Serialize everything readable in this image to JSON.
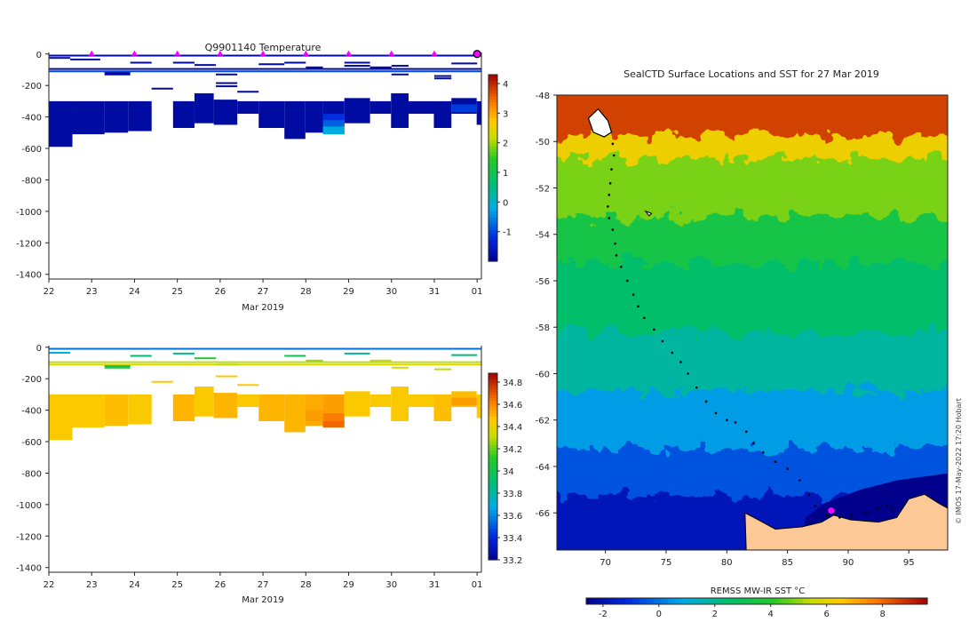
{
  "chart_data": [
    {
      "type": "heatmap",
      "name": "temperature-section",
      "title": "Q9901140  Temperature",
      "xlabel": "Mar 2019",
      "ylabel": "",
      "x_ticks": [
        "22",
        "23",
        "24",
        "25",
        "26",
        "27",
        "28",
        "29",
        "30",
        "31",
        "01"
      ],
      "x_tick_values": [
        22,
        23,
        24,
        25,
        26,
        27,
        28,
        29,
        30,
        31,
        32
      ],
      "xlim": [
        22,
        32.1
      ],
      "ylim": [
        -1430,
        10
      ],
      "y_ticks": [
        0,
        -200,
        -400,
        -600,
        -800,
        -1000,
        -1200,
        -1400
      ],
      "profile_markers": [
        23,
        24,
        25,
        26,
        27,
        28,
        29,
        30,
        31,
        32
      ],
      "colorbar": {
        "min": -2,
        "max": 4.3,
        "ticks": [
          4,
          3,
          2,
          1,
          0,
          -1
        ]
      },
      "columns": [
        {
          "x0": 22,
          "x1": 22.55,
          "top": -300,
          "bottom": -590,
          "value": -1.8
        },
        {
          "x0": 22.55,
          "x1": 23.3,
          "top": -300,
          "bottom": -510,
          "value": -1.8
        },
        {
          "x0": 23.3,
          "x1": 23.85,
          "top": -300,
          "bottom": -500,
          "value": -1.8
        },
        {
          "x0": 23.85,
          "x1": 24.4,
          "top": -300,
          "bottom": -490,
          "value": -1.8
        },
        {
          "x0": 24.9,
          "x1": 25.4,
          "top": -300,
          "bottom": -470,
          "value": -1.8
        },
        {
          "x0": 25.4,
          "x1": 25.85,
          "top": -250,
          "bottom": -440,
          "value": -1.8
        },
        {
          "x0": 25.85,
          "x1": 26.4,
          "top": -290,
          "bottom": -450,
          "value": -1.8
        },
        {
          "x0": 26.4,
          "x1": 26.9,
          "top": -300,
          "bottom": -380,
          "value": -1.8
        },
        {
          "x0": 26.9,
          "x1": 27.5,
          "top": -300,
          "bottom": -470,
          "value": -1.8
        },
        {
          "x0": 27.5,
          "x1": 27.99,
          "top": -300,
          "bottom": -540,
          "value": -1.8
        },
        {
          "x0": 27.99,
          "x1": 28.4,
          "top": -300,
          "bottom": -500,
          "value": -1.8
        },
        {
          "x0": 28.4,
          "x1": 28.9,
          "top": -300,
          "bottom": -510,
          "value": -1.8
        },
        {
          "x0": 28.9,
          "x1": 29.5,
          "top": -280,
          "bottom": -440,
          "value": -1.8
        },
        {
          "x0": 29.5,
          "x1": 29.99,
          "top": -300,
          "bottom": -380,
          "value": -1.8
        },
        {
          "x0": 29.99,
          "x1": 30.4,
          "top": -250,
          "bottom": -470,
          "value": -1.8
        },
        {
          "x0": 30.4,
          "x1": 30.99,
          "top": -300,
          "bottom": -380,
          "value": -1.8
        },
        {
          "x0": 30.99,
          "x1": 31.4,
          "top": -300,
          "bottom": -470,
          "value": -1.8
        },
        {
          "x0": 31.4,
          "x1": 31.99,
          "top": -280,
          "bottom": -380,
          "value": -1.8
        },
        {
          "x0": 31.99,
          "x1": 32.1,
          "top": -300,
          "bottom": -450,
          "value": -1.8
        }
      ],
      "patches": [
        {
          "x0": 28.4,
          "x1": 28.9,
          "top": -380,
          "bottom": -420,
          "value": -1.2
        },
        {
          "x0": 28.4,
          "x1": 28.9,
          "top": -420,
          "bottom": -460,
          "value": -0.8
        },
        {
          "x0": 28.4,
          "x1": 28.9,
          "top": -460,
          "bottom": -510,
          "value": -0.2
        },
        {
          "x0": 31.4,
          "x1": 31.99,
          "top": -320,
          "bottom": -370,
          "value": -1.1
        }
      ],
      "near_surface_lines": [
        {
          "x0": 22,
          "x1": 32.1,
          "depth": -10,
          "value": -1.8
        },
        {
          "x0": 22,
          "x1": 32.1,
          "depth": -95,
          "value": -1.8
        },
        {
          "x0": 22,
          "x1": 32.1,
          "depth": -110,
          "value": -1.0
        },
        {
          "x0": 22,
          "x1": 22.5,
          "depth": -25,
          "value": -1.8
        },
        {
          "x0": 22.5,
          "x1": 23.2,
          "depth": -35,
          "value": -1.8
        },
        {
          "x0": 23.3,
          "x1": 23.9,
          "depth": -120,
          "value": -1.8
        },
        {
          "x0": 23.3,
          "x1": 23.9,
          "depth": -130,
          "value": -1.8
        },
        {
          "x0": 23.9,
          "x1": 24.4,
          "depth": -55,
          "value": -1.8
        },
        {
          "x0": 24.4,
          "x1": 24.9,
          "depth": -220,
          "value": -1.8
        },
        {
          "x0": 24.9,
          "x1": 25.4,
          "depth": -55,
          "value": -1.8
        },
        {
          "x0": 25.4,
          "x1": 25.9,
          "depth": -70,
          "value": -1.8
        },
        {
          "x0": 25.9,
          "x1": 26.4,
          "depth": -130,
          "value": -1.8
        },
        {
          "x0": 25.9,
          "x1": 26.4,
          "depth": -185,
          "value": -1.8
        },
        {
          "x0": 25.9,
          "x1": 26.4,
          "depth": -205,
          "value": -1.8
        },
        {
          "x0": 26.4,
          "x1": 26.9,
          "depth": -240,
          "value": -1.8
        },
        {
          "x0": 26.9,
          "x1": 27.5,
          "depth": -65,
          "value": -1.8
        },
        {
          "x0": 27.5,
          "x1": 28.0,
          "depth": -55,
          "value": -1.8
        },
        {
          "x0": 28.0,
          "x1": 28.4,
          "depth": -85,
          "value": -1.8
        },
        {
          "x0": 28.9,
          "x1": 29.5,
          "depth": -55,
          "value": -1.8
        },
        {
          "x0": 28.9,
          "x1": 29.5,
          "depth": -75,
          "value": -1.8
        },
        {
          "x0": 29.5,
          "x1": 30.0,
          "depth": -85,
          "value": -1.8
        },
        {
          "x0": 30.0,
          "x1": 30.4,
          "depth": -75,
          "value": -1.8
        },
        {
          "x0": 30.0,
          "x1": 30.4,
          "depth": -130,
          "value": -1.8
        },
        {
          "x0": 31.0,
          "x1": 31.4,
          "depth": -140,
          "value": -1.8
        },
        {
          "x0": 31.0,
          "x1": 31.4,
          "depth": -155,
          "value": -1.8
        },
        {
          "x0": 31.4,
          "x1": 32.0,
          "depth": -60,
          "value": -1.8
        }
      ]
    },
    {
      "type": "heatmap",
      "name": "salinity-section",
      "title": "",
      "xlabel": "Mar 2019",
      "ylabel": "",
      "x_ticks": [
        "22",
        "23",
        "24",
        "25",
        "26",
        "27",
        "28",
        "29",
        "30",
        "31",
        "01"
      ],
      "x_tick_values": [
        22,
        23,
        24,
        25,
        26,
        27,
        28,
        29,
        30,
        31,
        32
      ],
      "xlim": [
        22,
        32.1
      ],
      "ylim": [
        -1430,
        10
      ],
      "y_ticks": [
        0,
        -200,
        -400,
        -600,
        -800,
        -1000,
        -1200,
        -1400
      ],
      "colorbar": {
        "min": 33.2,
        "max": 34.88,
        "ticks": [
          34.8,
          34.6,
          34.4,
          34.2,
          34,
          33.8,
          33.6,
          33.4,
          33.2
        ]
      },
      "columns": [
        {
          "x0": 22,
          "x1": 22.55,
          "top": -300,
          "bottom": -590,
          "value": 34.45
        },
        {
          "x0": 22.55,
          "x1": 23.3,
          "top": -300,
          "bottom": -510,
          "value": 34.45
        },
        {
          "x0": 23.3,
          "x1": 23.85,
          "top": -300,
          "bottom": -500,
          "value": 34.48
        },
        {
          "x0": 23.85,
          "x1": 24.4,
          "top": -300,
          "bottom": -490,
          "value": 34.45
        },
        {
          "x0": 24.9,
          "x1": 25.4,
          "top": -300,
          "bottom": -470,
          "value": 34.5
        },
        {
          "x0": 25.4,
          "x1": 25.85,
          "top": -250,
          "bottom": -440,
          "value": 34.45
        },
        {
          "x0": 25.85,
          "x1": 26.4,
          "top": -290,
          "bottom": -450,
          "value": 34.5
        },
        {
          "x0": 26.4,
          "x1": 26.9,
          "top": -300,
          "bottom": -380,
          "value": 34.45
        },
        {
          "x0": 26.9,
          "x1": 27.5,
          "top": -300,
          "bottom": -470,
          "value": 34.5
        },
        {
          "x0": 27.5,
          "x1": 27.99,
          "top": -300,
          "bottom": -540,
          "value": 34.5
        },
        {
          "x0": 27.99,
          "x1": 28.4,
          "top": -300,
          "bottom": -500,
          "value": 34.52
        },
        {
          "x0": 28.4,
          "x1": 28.9,
          "top": -300,
          "bottom": -510,
          "value": 34.55
        },
        {
          "x0": 28.9,
          "x1": 29.5,
          "top": -280,
          "bottom": -440,
          "value": 34.45
        },
        {
          "x0": 29.5,
          "x1": 29.99,
          "top": -300,
          "bottom": -380,
          "value": 34.45
        },
        {
          "x0": 29.99,
          "x1": 30.4,
          "top": -250,
          "bottom": -470,
          "value": 34.45
        },
        {
          "x0": 30.4,
          "x1": 30.99,
          "top": -300,
          "bottom": -380,
          "value": 34.45
        },
        {
          "x0": 30.99,
          "x1": 31.4,
          "top": -300,
          "bottom": -470,
          "value": 34.48
        },
        {
          "x0": 31.4,
          "x1": 31.99,
          "top": -280,
          "bottom": -380,
          "value": 34.48
        },
        {
          "x0": 31.99,
          "x1": 32.1,
          "top": -300,
          "bottom": -450,
          "value": 34.45
        }
      ],
      "patches": [
        {
          "x0": 28.4,
          "x1": 28.9,
          "top": -420,
          "bottom": -470,
          "value": 34.62
        },
        {
          "x0": 28.4,
          "x1": 28.9,
          "top": -470,
          "bottom": -510,
          "value": 34.66
        },
        {
          "x0": 27.99,
          "x1": 28.4,
          "top": -400,
          "bottom": -470,
          "value": 34.55
        },
        {
          "x0": 31.4,
          "x1": 31.99,
          "top": -320,
          "bottom": -370,
          "value": 34.55
        }
      ],
      "near_surface_lines": [
        {
          "x0": 22,
          "x1": 32.1,
          "depth": -10,
          "value": 33.55
        },
        {
          "x0": 22,
          "x1": 32.1,
          "depth": -95,
          "value": 34.3
        },
        {
          "x0": 22,
          "x1": 32.1,
          "depth": -110,
          "value": 34.35
        },
        {
          "x0": 22,
          "x1": 22.5,
          "depth": -35,
          "value": 33.7
        },
        {
          "x0": 23.3,
          "x1": 23.9,
          "depth": -120,
          "value": 34.0
        },
        {
          "x0": 23.3,
          "x1": 23.9,
          "depth": -130,
          "value": 34.1
        },
        {
          "x0": 23.9,
          "x1": 24.4,
          "depth": -55,
          "value": 33.9
        },
        {
          "x0": 24.4,
          "x1": 24.9,
          "depth": -220,
          "value": 34.45
        },
        {
          "x0": 24.9,
          "x1": 25.4,
          "depth": -40,
          "value": 33.85
        },
        {
          "x0": 25.4,
          "x1": 25.9,
          "depth": -70,
          "value": 34.1
        },
        {
          "x0": 25.9,
          "x1": 26.4,
          "depth": -110,
          "value": 34.3
        },
        {
          "x0": 25.9,
          "x1": 26.4,
          "depth": -185,
          "value": 34.45
        },
        {
          "x0": 26.4,
          "x1": 26.9,
          "depth": -240,
          "value": 34.45
        },
        {
          "x0": 27.5,
          "x1": 28.0,
          "depth": -55,
          "value": 34.0
        },
        {
          "x0": 28.0,
          "x1": 28.4,
          "depth": -85,
          "value": 34.25
        },
        {
          "x0": 28.9,
          "x1": 29.5,
          "depth": -40,
          "value": 33.8
        },
        {
          "x0": 29.5,
          "x1": 30.0,
          "depth": -85,
          "value": 34.3
        },
        {
          "x0": 30.0,
          "x1": 30.4,
          "depth": -130,
          "value": 34.35
        },
        {
          "x0": 31.0,
          "x1": 31.4,
          "depth": -140,
          "value": 34.3
        },
        {
          "x0": 31.4,
          "x1": 32.0,
          "depth": -50,
          "value": 33.9
        }
      ]
    },
    {
      "type": "heatmap",
      "name": "sst-map",
      "title": "SealCTD Surface Locations and SST for 27 Mar 2019",
      "xlabel": "",
      "ylabel": "",
      "xlim": [
        66,
        98.2
      ],
      "ylim": [
        -67.6,
        -48
      ],
      "x_ticks": [
        70,
        75,
        80,
        85,
        90,
        95
      ],
      "y_ticks": [
        -48,
        -50,
        -52,
        -54,
        -56,
        -58,
        -60,
        -62,
        -64,
        -66
      ],
      "colorbar": {
        "label": "REMSS MW-IR SST °C",
        "min": -2.6,
        "max": 9.6,
        "ticks": [
          -2,
          0,
          2,
          4,
          6,
          8
        ]
      },
      "sst_zones": [
        {
          "lat_top": -48,
          "lat_bottom": -50.5,
          "value": 8.6
        },
        {
          "lat_top": -50.5,
          "lat_bottom": -51.5,
          "value": 6.2
        },
        {
          "lat_top": -51.5,
          "lat_bottom": -54,
          "value": 4.8
        },
        {
          "lat_top": -54,
          "lat_bottom": -56,
          "value": 3.4
        },
        {
          "lat_top": -56,
          "lat_bottom": -59,
          "value": 2.6
        },
        {
          "lat_top": -59,
          "lat_bottom": -61.5,
          "value": 1.8
        },
        {
          "lat_top": -61.5,
          "lat_bottom": -64,
          "value": 0.6
        },
        {
          "lat_top": -64,
          "lat_bottom": -66,
          "value": -0.5
        },
        {
          "lat_top": -66,
          "lat_bottom": -67.6,
          "value": -1.8
        }
      ],
      "track": [
        [
          70.6,
          -50.1
        ],
        [
          70.7,
          -50.6
        ],
        [
          70.5,
          -51.2
        ],
        [
          70.4,
          -51.8
        ],
        [
          70.3,
          -52.3
        ],
        [
          70.2,
          -52.8
        ],
        [
          70.3,
          -53.3
        ],
        [
          70.6,
          -53.8
        ],
        [
          70.8,
          -54.4
        ],
        [
          70.9,
          -54.9
        ],
        [
          71.3,
          -55.4
        ],
        [
          71.8,
          -56.0
        ],
        [
          72.3,
          -56.6
        ],
        [
          72.7,
          -57.1
        ],
        [
          73.2,
          -57.6
        ],
        [
          74.0,
          -58.1
        ],
        [
          74.7,
          -58.6
        ],
        [
          75.5,
          -59.1
        ],
        [
          76.2,
          -59.5
        ],
        [
          76.8,
          -60.0
        ],
        [
          77.5,
          -60.6
        ],
        [
          78.3,
          -61.2
        ],
        [
          79.1,
          -61.7
        ],
        [
          80.0,
          -62.0
        ],
        [
          80.7,
          -62.1
        ],
        [
          81.6,
          -62.5
        ],
        [
          82.2,
          -63.0
        ],
        [
          83.0,
          -63.4
        ],
        [
          84.0,
          -63.8
        ],
        [
          85.0,
          -64.1
        ],
        [
          86.0,
          -64.6
        ],
        [
          86.8,
          -65.2
        ],
        [
          87.3,
          -65.7
        ],
        [
          88.2,
          -66.1
        ],
        [
          89.3,
          -66.2
        ],
        [
          90.3,
          -66.1
        ],
        [
          91.5,
          -66.0
        ],
        [
          92.5,
          -65.8
        ],
        [
          93.2,
          -65.7
        ],
        [
          93.6,
          -65.8
        ]
      ],
      "highlight_position": [
        88.6,
        -65.9
      ]
    }
  ],
  "credit": "© IMOS 17-May-2022 17:20 Hobart"
}
